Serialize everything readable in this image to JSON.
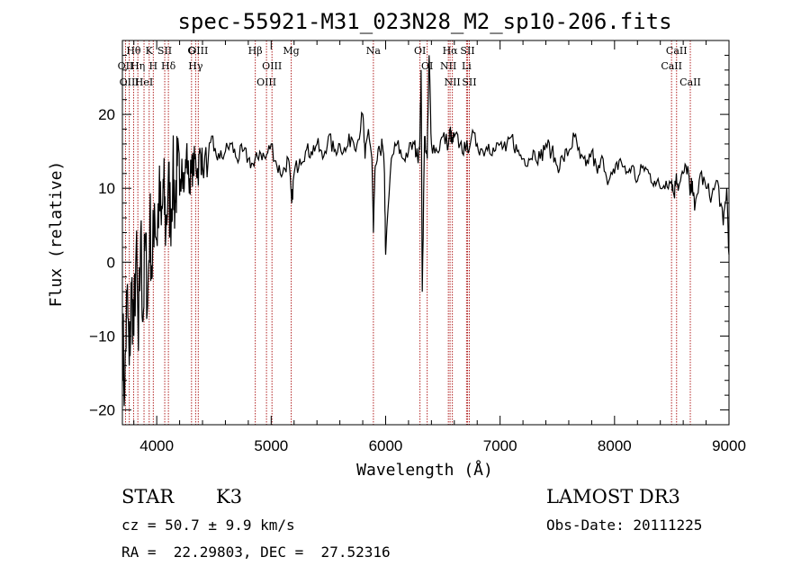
{
  "chart_data": {
    "type": "line",
    "title": "spec-55921-M31_023N28_M2_sp10-206.fits",
    "xlabel": "Wavelength (Å)",
    "ylabel": "Flux (relative)",
    "xlim": [
      3700,
      9000
    ],
    "ylim": [
      -22,
      30
    ],
    "xticks": [
      4000,
      5000,
      6000,
      7000,
      8000,
      9000
    ],
    "xtick_labels": [
      "4000",
      "5000",
      "6000",
      "7000",
      "8000",
      "9000"
    ],
    "yticks": [
      -20,
      -10,
      0,
      10,
      20
    ],
    "ytick_labels": [
      "−20",
      "−10",
      "0",
      "10",
      "20"
    ],
    "spectrum": {
      "x": [
        3700,
        3720,
        3740,
        3760,
        3780,
        3800,
        3820,
        3840,
        3860,
        3880,
        3900,
        3920,
        3940,
        3960,
        3980,
        4000,
        4020,
        4040,
        4060,
        4080,
        4100,
        4120,
        4140,
        4160,
        4180,
        4200,
        4220,
        4240,
        4260,
        4280,
        4300,
        4320,
        4340,
        4360,
        4380,
        4400,
        4450,
        4500,
        4550,
        4600,
        4650,
        4700,
        4750,
        4800,
        4850,
        4900,
        4950,
        5000,
        5050,
        5100,
        5150,
        5180,
        5200,
        5250,
        5300,
        5350,
        5400,
        5450,
        5500,
        5550,
        5600,
        5650,
        5700,
        5750,
        5800,
        5820,
        5850,
        5880,
        5893,
        5910,
        5950,
        5970,
        5990,
        6000,
        6050,
        6100,
        6150,
        6200,
        6250,
        6280,
        6300,
        6310,
        6320,
        6340,
        6363,
        6380,
        6400,
        6450,
        6500,
        6550,
        6563,
        6580,
        6600,
        6650,
        6700,
        6750,
        6800,
        6850,
        6900,
        6950,
        7000,
        7050,
        7100,
        7150,
        7200,
        7250,
        7300,
        7350,
        7400,
        7450,
        7500,
        7550,
        7600,
        7650,
        7700,
        7750,
        7800,
        7850,
        7900,
        7950,
        8000,
        8050,
        8100,
        8150,
        8200,
        8250,
        8300,
        8350,
        8400,
        8450,
        8500,
        8520,
        8540,
        8560,
        8600,
        8640,
        8660,
        8680,
        8700,
        8750,
        8800,
        8850,
        8900,
        8950,
        8980,
        9000
      ],
      "y": [
        -8,
        -18,
        -4,
        -14,
        -3,
        -10,
        2,
        -12,
        4,
        -8,
        3,
        -6,
        6,
        -2,
        8,
        3,
        9,
        5,
        10,
        4,
        11,
        6,
        12,
        8,
        13,
        9,
        14,
        10,
        15,
        11,
        12,
        13,
        14,
        12,
        15,
        13,
        14,
        15,
        14,
        15,
        16,
        14,
        15,
        14,
        13,
        15,
        14,
        16,
        13,
        12,
        14,
        8,
        12,
        14,
        15,
        15,
        16,
        14,
        17,
        15,
        16,
        15,
        17,
        16,
        20,
        14,
        18,
        14,
        4,
        13,
        15,
        16,
        12,
        1,
        14,
        16,
        14,
        15,
        16,
        14,
        17,
        26,
        -4,
        17,
        14,
        28,
        16,
        15,
        17,
        16,
        18,
        16,
        17,
        16,
        15,
        17,
        16,
        15,
        16,
        15,
        16,
        15,
        17,
        15,
        14,
        14,
        15,
        14,
        16,
        15,
        13,
        14,
        15,
        17,
        14,
        13,
        15,
        12,
        14,
        11,
        12,
        14,
        12,
        13,
        11,
        13,
        12,
        11,
        10,
        11,
        11,
        9,
        12,
        10,
        12,
        13,
        9,
        11,
        7,
        12,
        10,
        9,
        11,
        5,
        10,
        1
      ]
    },
    "emission_lines": [
      {
        "label": "Hθ",
        "x": 3798
      },
      {
        "label": "OII",
        "x": 3727
      },
      {
        "label": "OIII",
        "x": 3760
      },
      {
        "label": "Hη",
        "x": 3835
      },
      {
        "label": "HeI",
        "x": 3889
      },
      {
        "label": "K",
        "x": 3934
      },
      {
        "label": "SII",
        "x": 4070
      },
      {
        "label": "H",
        "x": 3970
      },
      {
        "label": "Hδ",
        "x": 4102
      },
      {
        "label": "OIII",
        "x": 4363
      },
      {
        "label": "Hγ",
        "x": 4340
      },
      {
        "label": "G",
        "x": 4304
      },
      {
        "label": "Hβ",
        "x": 4861
      },
      {
        "label": "OIII",
        "x": 5007
      },
      {
        "label": "OIII",
        "x": 4959
      },
      {
        "label": "Mg",
        "x": 5175
      },
      {
        "label": "Na",
        "x": 5893
      },
      {
        "label": "OI",
        "x": 6300
      },
      {
        "label": "OI",
        "x": 6363
      },
      {
        "label": "Hα",
        "x": 6563
      },
      {
        "label": "NII",
        "x": 6548
      },
      {
        "label": "NII",
        "x": 6583
      },
      {
        "label": "SII",
        "x": 6716
      },
      {
        "label": "Li",
        "x": 6707
      },
      {
        "label": "SII",
        "x": 6731
      },
      {
        "label": "CaII",
        "x": 8542
      },
      {
        "label": "CaII",
        "x": 8498
      },
      {
        "label": "CaII",
        "x": 8662
      }
    ]
  },
  "info": {
    "class_label": "STAR",
    "subclass": "K3",
    "survey": "LAMOST DR3",
    "cz": "cz = 50.7 ± 9.9 km/s",
    "obs_date": "Obs-Date: 20111225",
    "radec": "RA =  22.29803, DEC =  27.52316"
  },
  "colors": {
    "line_marker": "#b22222",
    "spectrum": "#000000"
  }
}
